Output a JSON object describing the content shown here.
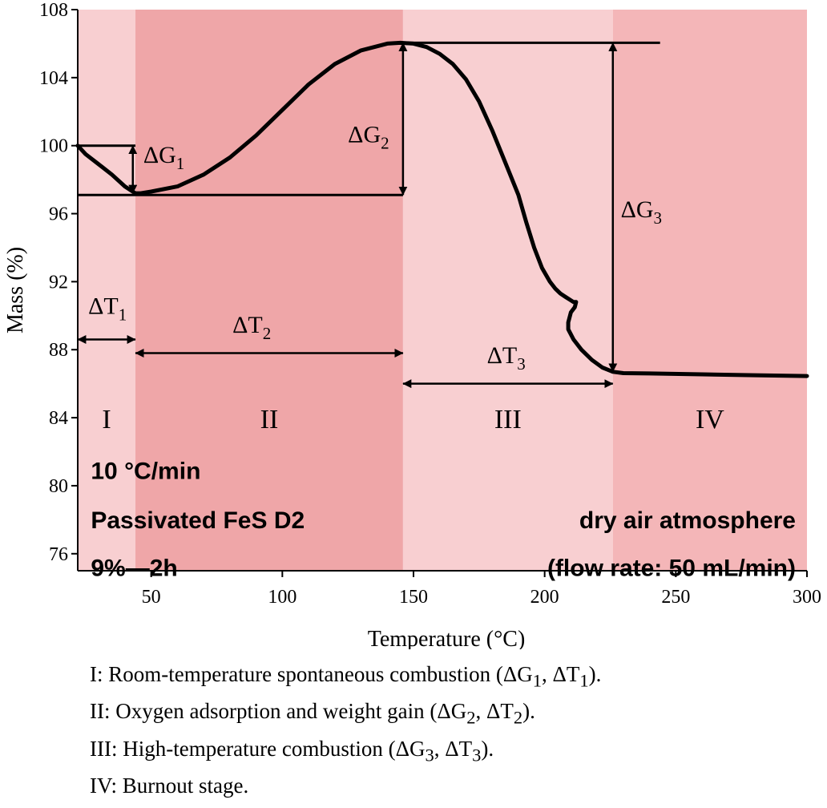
{
  "chart_data": {
    "type": "line",
    "xlabel": "Temperature (°C)",
    "ylabel": "Mass (%)",
    "xlim": [
      22,
      300
    ],
    "ylim": [
      75,
      108
    ],
    "xticks": [
      50,
      100,
      150,
      200,
      250,
      300
    ],
    "yticks": [
      76,
      80,
      84,
      88,
      92,
      96,
      100,
      104,
      108
    ],
    "grid": false,
    "series": [
      {
        "x": [
          22,
          25,
          30,
          35,
          40,
          44,
          46,
          50,
          60,
          70,
          80,
          90,
          100,
          110,
          120,
          130,
          140,
          145,
          150,
          155,
          160,
          165,
          170,
          175,
          180,
          185,
          190,
          193,
          196,
          199,
          202,
          204,
          206,
          208,
          210,
          211,
          212,
          211.5,
          210,
          209,
          209,
          211,
          214,
          218,
          222,
          226,
          230,
          240,
          260,
          280,
          300
        ],
        "values": [
          100.0,
          99.5,
          98.9,
          98.3,
          97.6,
          97.2,
          97.2,
          97.3,
          97.6,
          98.3,
          99.3,
          100.6,
          102.1,
          103.6,
          104.8,
          105.6,
          106.0,
          106.05,
          106.0,
          105.8,
          105.4,
          104.8,
          103.9,
          102.6,
          100.9,
          99.0,
          97.1,
          95.5,
          94.0,
          92.8,
          92.0,
          91.6,
          91.3,
          91.1,
          90.9,
          90.8,
          90.8,
          90.5,
          90.2,
          89.6,
          89.2,
          88.6,
          88.0,
          87.4,
          86.95,
          86.7,
          86.62,
          86.6,
          86.55,
          86.5,
          86.45
        ]
      }
    ],
    "regions": [
      {
        "label": "I",
        "from": 22,
        "to": 44,
        "color": "#f8cfd1"
      },
      {
        "label": "II",
        "from": 44,
        "to": 146,
        "color": "#efa6a8"
      },
      {
        "label": "III",
        "from": 146,
        "to": 226,
        "color": "#f8cfd1"
      },
      {
        "label": "IV",
        "from": 226,
        "to": 300,
        "color": "#f4b6b8"
      }
    ],
    "reference_lines": [
      {
        "x1": 22,
        "x2": 44,
        "y": 100
      },
      {
        "x1": 22,
        "x2": 146,
        "y": 97.1
      },
      {
        "x1": 146,
        "x2": 244,
        "y": 106.05
      }
    ],
    "annotations": {
      "delta_g": [
        {
          "main": "ΔG",
          "sub": "1",
          "x": 43,
          "from": 100,
          "to": 97.2,
          "label_x": 47,
          "label_y": 99.0
        },
        {
          "main": "ΔG",
          "sub": "2",
          "x": 146,
          "from": 106.05,
          "to": 97.1,
          "label_x": 125,
          "label_y": 100.2
        },
        {
          "main": "ΔG",
          "sub": "3",
          "x": 226,
          "from": 106.05,
          "to": 86.7,
          "label_x": 229,
          "label_y": 95.8
        }
      ],
      "delta_t": [
        {
          "main": "ΔT",
          "sub": "1",
          "from": 22,
          "to": 44,
          "y": 88.6,
          "label_x": 26,
          "label_y": 90.1
        },
        {
          "main": "ΔT",
          "sub": "2",
          "from": 44,
          "to": 146,
          "y": 87.8,
          "label_x": 81,
          "label_y": 89.0
        },
        {
          "main": "ΔT",
          "sub": "3",
          "from": 146,
          "to": 226,
          "y": 86.0,
          "label_x": 178,
          "label_y": 87.2
        }
      ]
    },
    "texts": {
      "condition_lines": [
        "10 °C/min",
        "Passivated FeS D2",
        "9%—2h"
      ],
      "atmosphere_lines": [
        "dry air atmosphere",
        "(flow rate: 50 mL/min)"
      ]
    }
  },
  "legend": [
    {
      "prefix": "I: Room-temperature spontaneous combustion (ΔG",
      "s1": "1",
      "mid": ", ΔT",
      "s2": "1",
      "suffix": ")."
    },
    {
      "prefix": "II: Oxygen adsorption and weight gain (ΔG",
      "s1": "2",
      "mid": ", ΔT",
      "s2": "2",
      "suffix": ")."
    },
    {
      "prefix": "III: High-temperature combustion (ΔG",
      "s1": "3",
      "mid": ", ΔT",
      "s2": "3",
      "suffix": ")."
    },
    {
      "prefix": "IV: Burnout stage.",
      "s1": "",
      "mid": "",
      "s2": "",
      "suffix": ""
    }
  ]
}
